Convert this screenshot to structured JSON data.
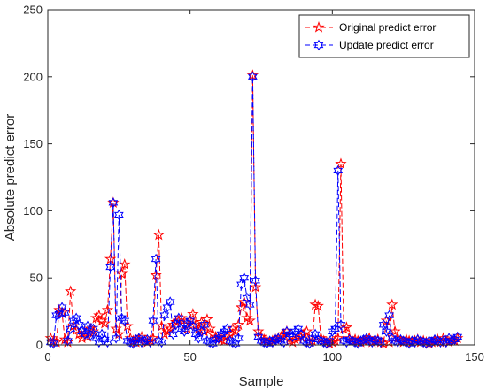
{
  "chart_data": {
    "type": "line",
    "xlabel": "Sample",
    "ylabel": "Absolute predict error",
    "xlim": [
      0,
      150
    ],
    "ylim": [
      0,
      250
    ],
    "xticks": [
      0,
      50,
      100,
      150
    ],
    "yticks": [
      0,
      50,
      100,
      150,
      200,
      250
    ],
    "grid": false,
    "legend_position": "top-right",
    "series": [
      {
        "name": "Original predict error",
        "color": "#ff0000",
        "marker": "pentagram",
        "line_style": "dashed",
        "x": [
          1,
          2,
          3,
          4,
          5,
          6,
          7,
          8,
          9,
          10,
          11,
          12,
          13,
          14,
          15,
          16,
          17,
          18,
          19,
          20,
          21,
          22,
          23,
          24,
          25,
          26,
          27,
          28,
          29,
          30,
          31,
          32,
          33,
          34,
          35,
          36,
          37,
          38,
          39,
          40,
          41,
          42,
          43,
          44,
          45,
          46,
          47,
          48,
          49,
          50,
          51,
          52,
          53,
          54,
          55,
          56,
          57,
          58,
          59,
          60,
          61,
          62,
          63,
          64,
          65,
          66,
          67,
          68,
          69,
          70,
          71,
          72,
          73,
          74,
          75,
          76,
          77,
          78,
          79,
          80,
          81,
          82,
          83,
          84,
          85,
          86,
          87,
          88,
          89,
          90,
          91,
          92,
          93,
          94,
          95,
          96,
          97,
          98,
          99,
          100,
          101,
          102,
          103,
          104,
          105,
          106,
          107,
          108,
          109,
          110,
          111,
          112,
          113,
          114,
          115,
          116,
          117,
          118,
          119,
          120,
          121,
          122,
          123,
          124,
          125,
          126,
          127,
          128,
          129,
          130,
          131,
          132,
          133,
          134,
          135,
          136,
          137,
          138,
          139,
          140,
          141,
          142,
          143,
          144
        ],
        "values": [
          5,
          3,
          2,
          26,
          24,
          4,
          2,
          40,
          14,
          11,
          8,
          5,
          9,
          6,
          12,
          10,
          20,
          22,
          18,
          16,
          26,
          64,
          106,
          12,
          8,
          53,
          60,
          14,
          5,
          3,
          2,
          4,
          6,
          3,
          2,
          3,
          5,
          52,
          82,
          14,
          8,
          10,
          12,
          15,
          17,
          18,
          20,
          15,
          12,
          18,
          23,
          15,
          12,
          17,
          10,
          19,
          12,
          8,
          6,
          5,
          4,
          3,
          6,
          8,
          12,
          10,
          15,
          28,
          32,
          20,
          18,
          201,
          43,
          10,
          6,
          4,
          3,
          2,
          3,
          4,
          5,
          6,
          8,
          10,
          3,
          2,
          4,
          5,
          6,
          8,
          10,
          2,
          3,
          30,
          29,
          5,
          3,
          2,
          1,
          2,
          3,
          5,
          135,
          12,
          13,
          5,
          3,
          4,
          3,
          2,
          3,
          4,
          5,
          2,
          3,
          4,
          2,
          1,
          18,
          2,
          30,
          10,
          5,
          3,
          2,
          4,
          3,
          2,
          3,
          4,
          2,
          3,
          2,
          1,
          2,
          3,
          4,
          2,
          5,
          3,
          2,
          4,
          3,
          5
        ]
      },
      {
        "name": "Update predict error",
        "color": "#0000ff",
        "marker": "hexagram",
        "line_style": "dashed",
        "x": [
          1,
          2,
          3,
          4,
          5,
          6,
          7,
          8,
          9,
          10,
          11,
          12,
          13,
          14,
          15,
          16,
          17,
          18,
          19,
          20,
          21,
          22,
          23,
          24,
          25,
          26,
          27,
          28,
          29,
          30,
          31,
          32,
          33,
          34,
          35,
          36,
          37,
          38,
          39,
          40,
          41,
          42,
          43,
          44,
          45,
          46,
          47,
          48,
          49,
          50,
          51,
          52,
          53,
          54,
          55,
          56,
          57,
          58,
          59,
          60,
          61,
          62,
          63,
          64,
          65,
          66,
          67,
          68,
          69,
          70,
          71,
          72,
          73,
          74,
          75,
          76,
          77,
          78,
          79,
          80,
          81,
          82,
          83,
          84,
          85,
          86,
          87,
          88,
          89,
          90,
          91,
          92,
          93,
          94,
          95,
          96,
          97,
          98,
          99,
          100,
          101,
          102,
          103,
          104,
          105,
          106,
          107,
          108,
          109,
          110,
          111,
          112,
          113,
          114,
          115,
          116,
          117,
          118,
          119,
          120,
          121,
          122,
          123,
          124,
          125,
          126,
          127,
          128,
          129,
          130,
          131,
          132,
          133,
          134,
          135,
          136,
          137,
          138,
          139,
          140,
          141,
          142,
          143,
          144
        ],
        "values": [
          2,
          1,
          22,
          23,
          28,
          24,
          3,
          12,
          18,
          20,
          15,
          10,
          8,
          14,
          7,
          12,
          5,
          2,
          8,
          4,
          2,
          58,
          106,
          5,
          97,
          20,
          18,
          3,
          2,
          1,
          4,
          5,
          2,
          3,
          4,
          2,
          18,
          64,
          3,
          2,
          22,
          28,
          32,
          8,
          15,
          20,
          12,
          10,
          16,
          18,
          14,
          8,
          5,
          10,
          15,
          3,
          2,
          1,
          4,
          5,
          8,
          10,
          12,
          3,
          2,
          1,
          5,
          45,
          50,
          35,
          30,
          200,
          48,
          6,
          3,
          2,
          1,
          3,
          2,
          4,
          5,
          3,
          2,
          10,
          8,
          6,
          10,
          12,
          8,
          3,
          2,
          1,
          5,
          8,
          4,
          3,
          2,
          1,
          3,
          10,
          12,
          130,
          15,
          3,
          2,
          4,
          3,
          2,
          1,
          3,
          4,
          5,
          3,
          2,
          4,
          3,
          2,
          15,
          10,
          22,
          5,
          3,
          2,
          4,
          3,
          2,
          1,
          3,
          2,
          4,
          3,
          2,
          1,
          3,
          2,
          4,
          3,
          2,
          3,
          2,
          5,
          3,
          4,
          6
        ]
      }
    ]
  }
}
